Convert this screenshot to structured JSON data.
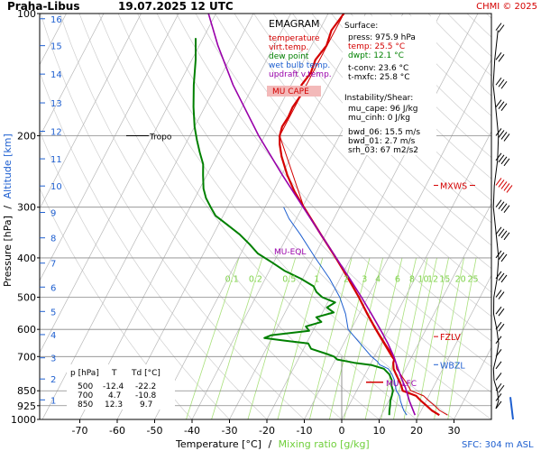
{
  "header": {
    "station": "Praha-Libus",
    "datetime": "19.07.2025 12 UTC",
    "credit": "CHMI © 2025"
  },
  "chart_data": {
    "type": "skew-t",
    "title": "EMAGRAM",
    "xlabel_left": "Temperature [°C]",
    "xlabel_sep": "/",
    "xlabel_right": "Mixing ratio [g/kg]",
    "ylabel_left": "Pressure [hPa]",
    "ylabel_sep": "/",
    "ylabel_right": "Altitude [km]",
    "xlim": [
      -80,
      35
    ],
    "ylim": [
      1000,
      100
    ],
    "grid": true,
    "temp_ticks": [
      -70,
      -60,
      -50,
      -40,
      -30,
      -20,
      -10,
      0,
      10,
      20,
      30
    ],
    "pressure_ticks": [
      100,
      200,
      300,
      400,
      500,
      600,
      700,
      850,
      925,
      1000
    ],
    "altitude_ticks": [
      {
        "km": 1,
        "p": 895
      },
      {
        "km": 2,
        "p": 795
      },
      {
        "km": 3,
        "p": 705
      },
      {
        "km": 4,
        "p": 618
      },
      {
        "km": 5,
        "p": 542
      },
      {
        "km": 6,
        "p": 472
      },
      {
        "km": 7,
        "p": 412
      },
      {
        "km": 8,
        "p": 357
      },
      {
        "km": 9,
        "p": 309
      },
      {
        "km": 10,
        "p": 266
      },
      {
        "km": 11,
        "p": 228
      },
      {
        "km": 12,
        "p": 195
      },
      {
        "km": 13,
        "p": 166
      },
      {
        "km": 14,
        "p": 141
      },
      {
        "km": 15,
        "p": 120
      },
      {
        "km": 16,
        "p": 103
      }
    ],
    "mixing_ratio_labels": [
      "0.1",
      "0.2",
      "0.5",
      "1",
      "2",
      "3",
      "4",
      "6",
      "8",
      "10",
      "12",
      "15",
      "20",
      "25"
    ],
    "legend": [
      {
        "label": "temperature",
        "color": "#d40000"
      },
      {
        "label": "virt.temp.",
        "color": "#d40000"
      },
      {
        "label": "dew point",
        "color": "#008000"
      },
      {
        "label": "wet bulb temp.",
        "color": "#1e5fd0"
      },
      {
        "label": "updraft v.temp.",
        "color": "#9900aa"
      }
    ],
    "mu_cape_label": "MU CAPE",
    "surface_stats": {
      "heading": "Surface:",
      "press": "press: 975.9 hPa",
      "temp": "temp: 25.5 °C",
      "dwpt": "dwpt: 12.1 °C",
      "tconv": "t-conv: 23.6 °C",
      "tmxfc": "t-mxfc: 25.8 °C"
    },
    "instability": {
      "heading": "Instability/Shear:",
      "mu_cape": "mu_cape: 96 J/kg",
      "mu_cinh": "mu_cinh: 0 J/kg",
      "bwd_06": "bwd_06: 15.5 m/s",
      "bwd_01": "bwd_01: 2.7 m/s",
      "srh_03": "srh_03: 67 m2/s2"
    },
    "table": {
      "headers": [
        "p [hPa]",
        "T",
        "Td [°C]"
      ],
      "rows": [
        [
          "500",
          "-12.4",
          "-22.2"
        ],
        [
          "700",
          "4.7",
          "-10.8"
        ],
        [
          "850",
          "12.3",
          "9.7"
        ]
      ]
    },
    "markers": {
      "tropo": {
        "label": "Tropo",
        "p": 200
      },
      "mu_eql": {
        "label": "MU-EQL",
        "p": 392
      },
      "mu_lfc": {
        "label": "MU-LFC",
        "p": 835
      },
      "mxws": {
        "label": "MXWS",
        "p": 265
      },
      "fzlv": {
        "label": "FZLV",
        "p": 625
      },
      "wbzl": {
        "label": "WBZL",
        "p": 733
      }
    },
    "sfc_label": "SFC: 304 m ASL",
    "series": [
      {
        "name": "temperature",
        "color": "#d40000",
        "points": [
          [
            975.9,
            25.5
          ],
          [
            950,
            22.8
          ],
          [
            925,
            20.8
          ],
          [
            900,
            18.6
          ],
          [
            875,
            16.6
          ],
          [
            850,
            12.3
          ],
          [
            825,
            11.2
          ],
          [
            800,
            9.8
          ],
          [
            775,
            8.3
          ],
          [
            750,
            6.8
          ],
          [
            725,
            5.9
          ],
          [
            712,
            5.7
          ],
          [
            700,
            4.7
          ],
          [
            650,
            0.8
          ],
          [
            600,
            -3.4
          ],
          [
            550,
            -7.8
          ],
          [
            500,
            -12.4
          ],
          [
            450,
            -17.8
          ],
          [
            400,
            -24.0
          ],
          [
            350,
            -31.3
          ],
          [
            300,
            -39.6
          ],
          [
            275,
            -44.2
          ],
          [
            250,
            -48.5
          ],
          [
            225,
            -52.6
          ],
          [
            210,
            -54.8
          ],
          [
            200,
            -56.0
          ],
          [
            190,
            -56.6
          ],
          [
            180,
            -56.3
          ],
          [
            170,
            -56.5
          ],
          [
            160,
            -56.0
          ],
          [
            150,
            -57.2
          ],
          [
            140,
            -56.4
          ],
          [
            130,
            -57.0
          ],
          [
            120,
            -56.0
          ],
          [
            110,
            -56.8
          ],
          [
            100,
            -55.8
          ]
        ]
      },
      {
        "name": "virt.temp.",
        "color": "#d40000",
        "points": [
          [
            975.9,
            27.7
          ],
          [
            950,
            24.9
          ],
          [
            925,
            22.9
          ],
          [
            900,
            20.7
          ],
          [
            875,
            18.6
          ],
          [
            850,
            14.5
          ],
          [
            825,
            13.0
          ],
          [
            800,
            11.3
          ],
          [
            775,
            9.5
          ],
          [
            750,
            7.6
          ],
          [
            725,
            6.6
          ],
          [
            700,
            5.2
          ],
          [
            650,
            1.1
          ],
          [
            600,
            -3.2
          ],
          [
            550,
            -7.6
          ],
          [
            500,
            -12.3
          ],
          [
            400,
            -24.0
          ],
          [
            300,
            -39.6
          ],
          [
            200,
            -56.0
          ],
          [
            100,
            -55.8
          ]
        ]
      },
      {
        "name": "dew point",
        "color": "#008000",
        "points": [
          [
            975.9,
            12.1
          ],
          [
            950,
            11.5
          ],
          [
            925,
            11.0
          ],
          [
            900,
            10.4
          ],
          [
            875,
            10.1
          ],
          [
            850,
            9.7
          ],
          [
            825,
            8.6
          ],
          [
            800,
            7.9
          ],
          [
            775,
            6.5
          ],
          [
            750,
            4.2
          ],
          [
            735,
            0.5
          ],
          [
            725,
            -4.5
          ],
          [
            712,
            -9.5
          ],
          [
            700,
            -10.8
          ],
          [
            690,
            -13.0
          ],
          [
            670,
            -18.0
          ],
          [
            650,
            -19.5
          ],
          [
            640,
            -26.0
          ],
          [
            630,
            -32.0
          ],
          [
            620,
            -30.5
          ],
          [
            605,
            -21.0
          ],
          [
            590,
            -22.5
          ],
          [
            575,
            -19.0
          ],
          [
            560,
            -21.0
          ],
          [
            545,
            -17.0
          ],
          [
            530,
            -19.5
          ],
          [
            515,
            -18.0
          ],
          [
            500,
            -22.2
          ],
          [
            485,
            -24.5
          ],
          [
            470,
            -26.0
          ],
          [
            450,
            -30.5
          ],
          [
            430,
            -36.0
          ],
          [
            410,
            -40.5
          ],
          [
            390,
            -45.5
          ],
          [
            370,
            -49.0
          ],
          [
            350,
            -53.0
          ],
          [
            330,
            -58.0
          ],
          [
            315,
            -62.0
          ],
          [
            300,
            -64.5
          ],
          [
            285,
            -67.0
          ],
          [
            270,
            -69.0
          ],
          [
            250,
            -71.0
          ],
          [
            235,
            -72.5
          ],
          [
            220,
            -75.0
          ],
          [
            205,
            -77.5
          ],
          [
            190,
            -80.0
          ],
          [
            170,
            -83.0
          ],
          [
            150,
            -86.0
          ],
          [
            130,
            -89.0
          ],
          [
            115,
            -92.0
          ]
        ]
      },
      {
        "name": "wet bulb temp.",
        "color": "#1e5fd0",
        "points": [
          [
            975.9,
            16.8
          ],
          [
            950,
            15.3
          ],
          [
            925,
            14.2
          ],
          [
            900,
            13.1
          ],
          [
            875,
            12.2
          ],
          [
            850,
            10.6
          ],
          [
            825,
            9.6
          ],
          [
            800,
            8.6
          ],
          [
            775,
            7.2
          ],
          [
            750,
            5.4
          ],
          [
            733,
            2.5
          ],
          [
            720,
            1.5
          ],
          [
            700,
            -0.8
          ],
          [
            650,
            -5.6
          ],
          [
            600,
            -10.8
          ],
          [
            550,
            -13.6
          ],
          [
            500,
            -17.5
          ],
          [
            450,
            -22.8
          ],
          [
            400,
            -29.5
          ],
          [
            350,
            -36.8
          ],
          [
            320,
            -42.0
          ],
          [
            300,
            -45.0
          ]
        ]
      },
      {
        "name": "updraft v.temp.",
        "color": "#9900aa",
        "points": [
          [
            975.9,
            19.0
          ],
          [
            900,
            15.5
          ],
          [
            850,
            13.3
          ],
          [
            835,
            12.6
          ],
          [
            800,
            10.7
          ],
          [
            750,
            8.0
          ],
          [
            700,
            5.2
          ],
          [
            650,
            1.8
          ],
          [
            600,
            -2.2
          ],
          [
            550,
            -6.7
          ],
          [
            500,
            -11.7
          ],
          [
            450,
            -17.4
          ],
          [
            400,
            -23.9
          ],
          [
            392,
            -25.0
          ],
          [
            350,
            -31.3
          ],
          [
            300,
            -39.8
          ],
          [
            250,
            -49.8
          ],
          [
            200,
            -61.6
          ],
          [
            150,
            -75.5
          ],
          [
            120,
            -85.0
          ],
          [
            100,
            -92.0
          ]
        ]
      }
    ]
  }
}
